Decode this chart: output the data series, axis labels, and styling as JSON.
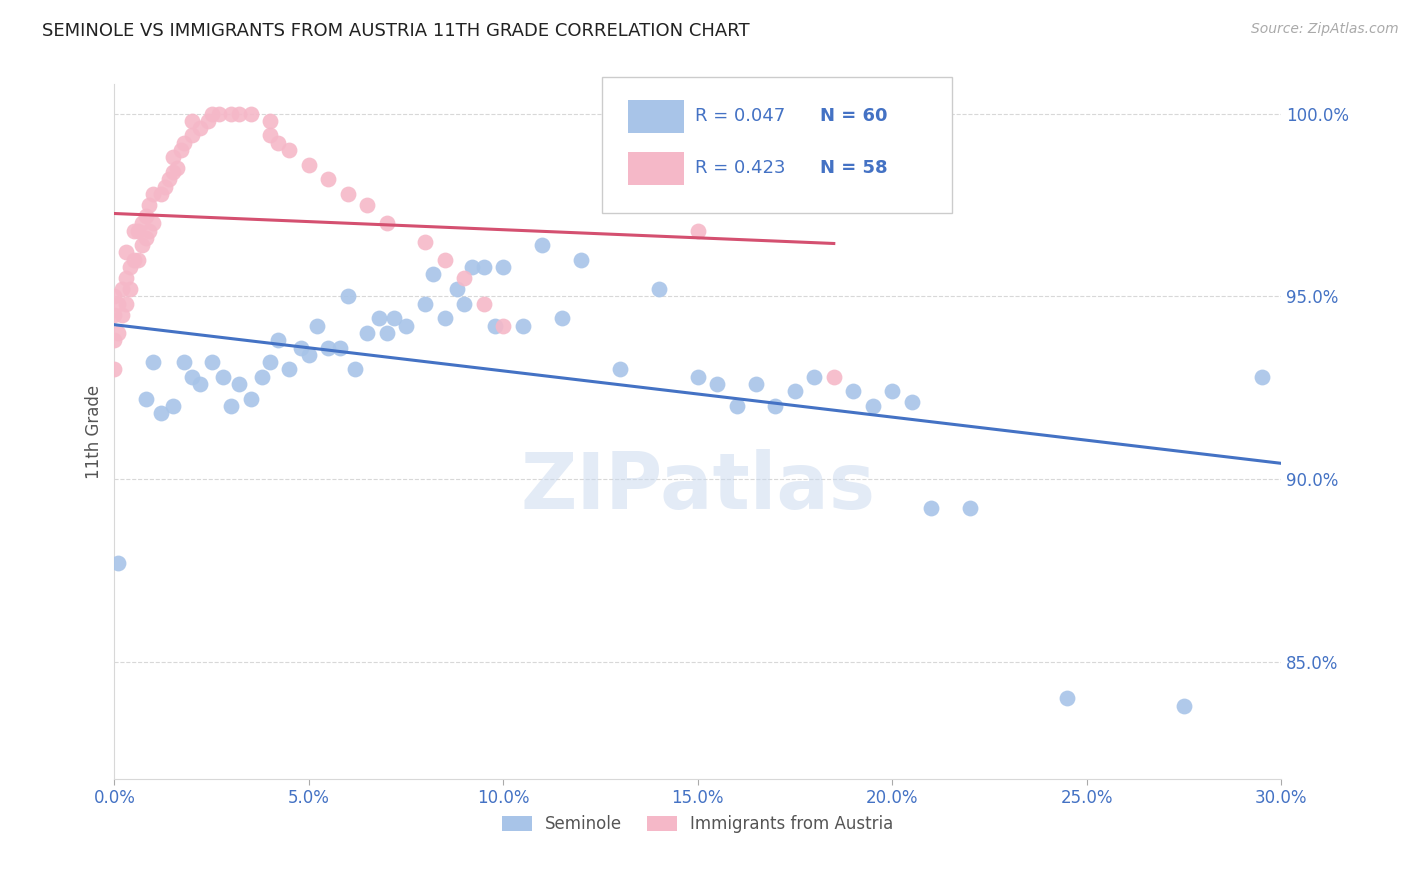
{
  "title": "SEMINOLE VS IMMIGRANTS FROM AUSTRIA 11TH GRADE CORRELATION CHART",
  "source_text": "Source: ZipAtlas.com",
  "ylabel": "11th Grade",
  "x_min": 0.0,
  "x_max": 0.3,
  "y_min": 0.818,
  "y_max": 1.008,
  "x_tick_labels": [
    "0.0%",
    "5.0%",
    "10.0%",
    "15.0%",
    "20.0%",
    "25.0%",
    "30.0%"
  ],
  "x_tick_vals": [
    0.0,
    0.05,
    0.1,
    0.15,
    0.2,
    0.25,
    0.3
  ],
  "y_tick_labels": [
    "85.0%",
    "90.0%",
    "95.0%",
    "100.0%"
  ],
  "y_tick_vals": [
    0.85,
    0.9,
    0.95,
    1.0
  ],
  "blue_color": "#a8c4e8",
  "pink_color": "#f5b8c8",
  "blue_line_color": "#4472c4",
  "pink_line_color": "#d45070",
  "legend_label_blue": "Seminole",
  "legend_label_pink": "Immigrants from Austria",
  "blue_scatter_x": [
    0.001,
    0.008,
    0.01,
    0.012,
    0.015,
    0.018,
    0.02,
    0.022,
    0.025,
    0.028,
    0.03,
    0.032,
    0.035,
    0.038,
    0.04,
    0.042,
    0.045,
    0.048,
    0.05,
    0.052,
    0.055,
    0.058,
    0.06,
    0.062,
    0.065,
    0.068,
    0.07,
    0.072,
    0.075,
    0.08,
    0.082,
    0.085,
    0.088,
    0.09,
    0.092,
    0.095,
    0.098,
    0.1,
    0.105,
    0.11,
    0.115,
    0.12,
    0.13,
    0.14,
    0.15,
    0.155,
    0.16,
    0.165,
    0.17,
    0.175,
    0.18,
    0.19,
    0.195,
    0.2,
    0.205,
    0.21,
    0.22,
    0.245,
    0.275,
    0.295
  ],
  "blue_scatter_y": [
    0.877,
    0.922,
    0.932,
    0.918,
    0.92,
    0.932,
    0.928,
    0.926,
    0.932,
    0.928,
    0.92,
    0.926,
    0.922,
    0.928,
    0.932,
    0.938,
    0.93,
    0.936,
    0.934,
    0.942,
    0.936,
    0.936,
    0.95,
    0.93,
    0.94,
    0.944,
    0.94,
    0.944,
    0.942,
    0.948,
    0.956,
    0.944,
    0.952,
    0.948,
    0.958,
    0.958,
    0.942,
    0.958,
    0.942,
    0.964,
    0.944,
    0.96,
    0.93,
    0.952,
    0.928,
    0.926,
    0.92,
    0.926,
    0.92,
    0.924,
    0.928,
    0.924,
    0.92,
    0.924,
    0.921,
    0.892,
    0.892,
    0.84,
    0.838,
    0.928
  ],
  "pink_scatter_x": [
    0.0,
    0.0,
    0.0,
    0.0,
    0.001,
    0.001,
    0.002,
    0.002,
    0.003,
    0.003,
    0.003,
    0.004,
    0.004,
    0.005,
    0.005,
    0.006,
    0.006,
    0.007,
    0.007,
    0.008,
    0.008,
    0.009,
    0.009,
    0.01,
    0.01,
    0.012,
    0.013,
    0.014,
    0.015,
    0.015,
    0.016,
    0.017,
    0.018,
    0.02,
    0.02,
    0.022,
    0.024,
    0.025,
    0.027,
    0.03,
    0.032,
    0.035,
    0.04,
    0.04,
    0.042,
    0.045,
    0.05,
    0.055,
    0.06,
    0.065,
    0.07,
    0.08,
    0.085,
    0.09,
    0.095,
    0.1,
    0.15,
    0.185
  ],
  "pink_scatter_y": [
    0.93,
    0.938,
    0.945,
    0.95,
    0.94,
    0.948,
    0.945,
    0.952,
    0.948,
    0.955,
    0.962,
    0.952,
    0.958,
    0.96,
    0.968,
    0.96,
    0.968,
    0.964,
    0.97,
    0.966,
    0.972,
    0.968,
    0.975,
    0.97,
    0.978,
    0.978,
    0.98,
    0.982,
    0.984,
    0.988,
    0.985,
    0.99,
    0.992,
    0.994,
    0.998,
    0.996,
    0.998,
    1.0,
    1.0,
    1.0,
    1.0,
    1.0,
    0.998,
    0.994,
    0.992,
    0.99,
    0.986,
    0.982,
    0.978,
    0.975,
    0.97,
    0.965,
    0.96,
    0.955,
    0.948,
    0.942,
    0.968,
    0.928
  ],
  "watermark_text": "ZIPatlas",
  "background_color": "#ffffff",
  "grid_color": "#d8d8d8"
}
